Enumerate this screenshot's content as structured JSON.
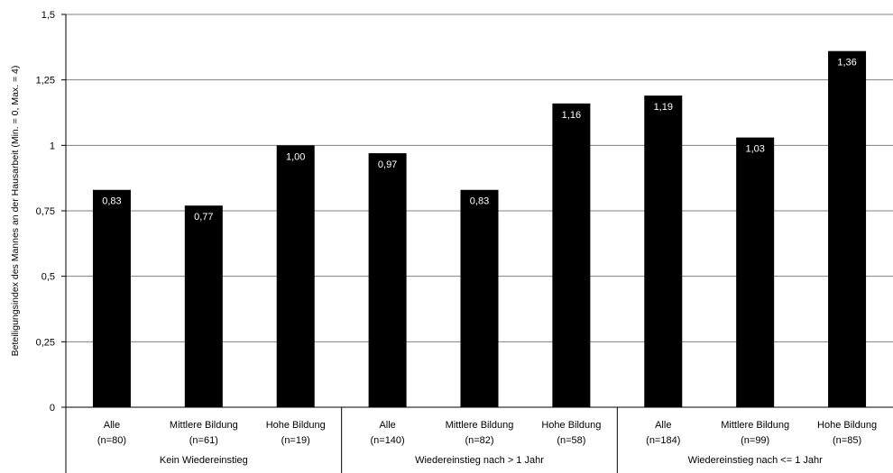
{
  "chart_data": {
    "type": "bar",
    "ylabel": "Beteiligungsindex des Mannes an der Hausarbeit (Min. = 0, Max. = 4)",
    "ylim": [
      0,
      1.5
    ],
    "yticks": [
      "0",
      "0,25",
      "0,5",
      "0,75",
      "1",
      "1,25",
      "1,5"
    ],
    "grid": true,
    "bar_color": "#000000",
    "groups": [
      {
        "label": "Kein Wiedereinstieg",
        "bars": [
          {
            "label": "Alle",
            "n": "(n=80)",
            "value": 0.83,
            "value_label": "0,83"
          },
          {
            "label": "Mittlere Bildung",
            "n": "(n=61)",
            "value": 0.77,
            "value_label": "0,77"
          },
          {
            "label": "Hohe Bildung",
            "n": "(n=19)",
            "value": 1.0,
            "value_label": "1,00"
          }
        ]
      },
      {
        "label": "Wiedereinstieg nach > 1 Jahr",
        "bars": [
          {
            "label": "Alle",
            "n": "(n=140)",
            "value": 0.97,
            "value_label": "0,97"
          },
          {
            "label": "Mittlere Bildung",
            "n": "(n=82)",
            "value": 0.83,
            "value_label": "0,83"
          },
          {
            "label": "Hohe Bildung",
            "n": "(n=58)",
            "value": 1.16,
            "value_label": "1,16"
          }
        ]
      },
      {
        "label": "Wiedereinstieg nach <= 1 Jahr",
        "bars": [
          {
            "label": "Alle",
            "n": "(n=184)",
            "value": 1.19,
            "value_label": "1,19"
          },
          {
            "label": "Mittlere Bildung",
            "n": "(n=99)",
            "value": 1.03,
            "value_label": "1,03"
          },
          {
            "label": "Hohe Bildung",
            "n": "(n=85)",
            "value": 1.36,
            "value_label": "1,36"
          }
        ]
      }
    ]
  }
}
